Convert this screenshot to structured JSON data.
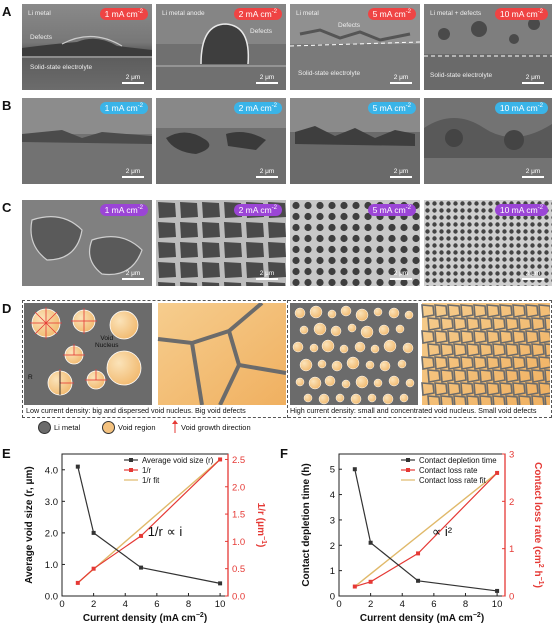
{
  "panel_letters": {
    "a": "A",
    "b": "B",
    "c": "C",
    "d": "D",
    "e": "E",
    "f": "F"
  },
  "sem_rows": {
    "a": {
      "badges": [
        {
          "value": "1 mA cm",
          "exp": "-2",
          "color": "#ef4444"
        },
        {
          "value": "2 mA cm",
          "exp": "-2",
          "color": "#ef4444"
        },
        {
          "value": "5 mA cm",
          "exp": "-2",
          "color": "#ef4444"
        },
        {
          "value": "10 mA cm",
          "exp": "-2",
          "color": "#ef4444"
        }
      ],
      "labels": {
        "p1_metal": "Li metal",
        "p1_defects": "Defects",
        "p1_sse": "Solid-state electrolyte",
        "p2_anode": "Li metal anode",
        "p2_defects": "Defects",
        "p3_metal": "Li metal",
        "p3_defects": "Defects",
        "p3_sse": "Solid-state electrolyte",
        "p4_top": "Li metal + defects",
        "p4_sse": "Solid-state electrolyte"
      }
    },
    "b": {
      "badges": [
        {
          "value": "1 mA cm",
          "exp": "-2",
          "color": "#3ab4e8"
        },
        {
          "value": "2 mA cm",
          "exp": "-2",
          "color": "#3ab4e8"
        },
        {
          "value": "5 mA cm",
          "exp": "-2",
          "color": "#3ab4e8"
        },
        {
          "value": "10 mA cm",
          "exp": "-2",
          "color": "#3ab4e8"
        }
      ]
    },
    "c": {
      "badges": [
        {
          "value": "1 mA cm",
          "exp": "-2",
          "color": "#9b45d6"
        },
        {
          "value": "2 mA cm",
          "exp": "-2",
          "color": "#9b45d6"
        },
        {
          "value": "5 mA cm",
          "exp": "-2",
          "color": "#9b45d6"
        },
        {
          "value": "10 mA cm",
          "exp": "-2",
          "color": "#9b45d6"
        }
      ]
    },
    "scale_bar": "2 μm"
  },
  "schematic": {
    "void_nucleus": "Void\nNucleus",
    "radius": "R",
    "caption_low": "Low current density: big and dispersed void nucleus. Big void defects",
    "caption_high": "High current density: small and concentrated void nucleus. Small void defects",
    "legend": {
      "metal": "Li metal",
      "void": "Void region",
      "growth": "Void growth direction"
    },
    "colors": {
      "metal": "#6b6b6b",
      "void": "#f4c27f",
      "arrow": "#e53935"
    }
  },
  "chart_data": [
    {
      "type": "line",
      "x": [
        1,
        2,
        5,
        10
      ],
      "xlabel": "Current density (mA cm",
      "xlabel_exp": "−2",
      "xlabel_end": ")",
      "ylabel_left": "Average void size (r, μm)",
      "ylabel_right": "1/r (μm",
      "ylabel_right_exp": "−1",
      "ylabel_right_end": ")",
      "xlim": [
        0,
        10.5
      ],
      "ylim_left": [
        0,
        4.5
      ],
      "ylim_right": [
        0,
        2.6
      ],
      "xticks": [
        "0",
        "2",
        "4",
        "6",
        "8",
        "10"
      ],
      "yticks_left": [
        "0.0",
        "1.0",
        "2.0",
        "3.0",
        "4.0"
      ],
      "yticks_right": [
        "0.0",
        "0.5",
        "1.0",
        "1.5",
        "2.0",
        "2.5"
      ],
      "series": [
        {
          "name": "Average void size (r)",
          "axis": "left",
          "values": [
            4.1,
            2.0,
            0.9,
            0.4
          ],
          "color": "#333333"
        },
        {
          "name": "1/r",
          "axis": "right",
          "values": [
            0.24,
            0.5,
            1.1,
            2.5
          ],
          "color": "#e53935"
        },
        {
          "name": "1/r fit",
          "axis": "right",
          "values": [
            0.24,
            0.5,
            1.1,
            2.5
          ],
          "color": "#e0b96a",
          "fit": true
        }
      ],
      "annotation": "1/r ∝ i"
    },
    {
      "type": "line",
      "x": [
        1,
        2,
        5,
        10
      ],
      "xlabel": "Current density (mA cm",
      "xlabel_exp": "−2",
      "xlabel_end": ")",
      "ylabel_left": "Contact depletion time (h)",
      "ylabel_right": "Contact loss rate (cm",
      "ylabel_right_exp": "2",
      "ylabel_right_mid": " h",
      "ylabel_right_exp2": "−1",
      "ylabel_right_end": ")",
      "xlim": [
        0,
        10.5
      ],
      "ylim_left": [
        0,
        5.6
      ],
      "ylim_right": [
        0,
        3
      ],
      "xticks": [
        "0",
        "2",
        "4",
        "6",
        "8",
        "10"
      ],
      "yticks_left": [
        "0",
        "1",
        "2",
        "3",
        "4",
        "5"
      ],
      "yticks_right": [
        "0",
        "1",
        "2",
        "3"
      ],
      "series": [
        {
          "name": "Contact depletion time",
          "axis": "left",
          "values": [
            5.0,
            2.1,
            0.6,
            0.2
          ],
          "color": "#333333"
        },
        {
          "name": "Contact loss rate",
          "axis": "right",
          "values": [
            0.2,
            0.3,
            0.9,
            2.6
          ],
          "color": "#e53935"
        },
        {
          "name": "Contact loss rate fit",
          "axis": "right",
          "values": [
            0.2,
            0.3,
            0.9,
            2.6
          ],
          "color": "#e0b96a",
          "fit": true
        }
      ],
      "annotation": "∝ i²"
    }
  ]
}
